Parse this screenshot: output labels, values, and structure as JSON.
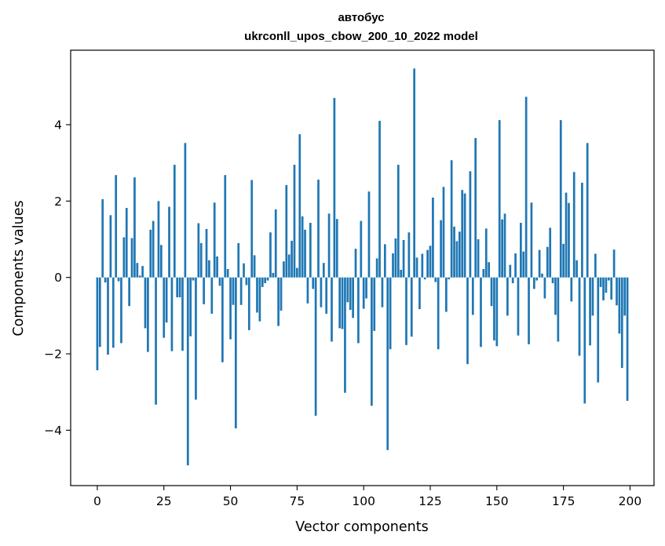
{
  "chart_data": {
    "type": "bar",
    "title": "автобус",
    "subtitle": "ukrconll_upos_cbow_200_10_2022 model",
    "xlabel": "Vector components",
    "ylabel": "Components values",
    "xlim": [
      -10,
      209
    ],
    "ylim": [
      -5.45,
      5.95
    ],
    "xticks": [
      0,
      25,
      50,
      75,
      100,
      125,
      150,
      175,
      200
    ],
    "yticks": [
      -4,
      -2,
      0,
      2,
      4
    ],
    "grid": false,
    "bar_color": "#1f77b4",
    "values": [
      -2.43,
      -1.82,
      2.05,
      -0.13,
      -2.02,
      1.63,
      -1.84,
      2.68,
      -0.1,
      -1.72,
      1.05,
      1.82,
      -0.75,
      1.03,
      2.62,
      0.38,
      0.05,
      0.3,
      -1.33,
      -1.95,
      1.25,
      1.48,
      -3.33,
      2.0,
      0.85,
      -1.58,
      -1.18,
      1.85,
      -1.93,
      2.95,
      -0.52,
      -0.52,
      -1.92,
      3.52,
      -4.92,
      -1.54,
      -0.08,
      -3.2,
      1.42,
      0.9,
      -0.7,
      1.27,
      0.45,
      -0.95,
      1.96,
      0.55,
      -0.22,
      -2.22,
      2.68,
      0.22,
      -1.62,
      -0.72,
      -3.95,
      0.9,
      -0.72,
      0.37,
      -0.2,
      -1.38,
      2.55,
      0.58,
      -0.92,
      -1.15,
      -0.25,
      -0.15,
      -0.08,
      1.18,
      0.12,
      1.78,
      -1.27,
      -0.87,
      0.42,
      2.42,
      0.6,
      0.96,
      2.95,
      0.25,
      3.75,
      1.6,
      1.25,
      -0.68,
      1.43,
      -0.3,
      -3.62,
      2.56,
      -0.78,
      0.38,
      -0.95,
      1.67,
      -1.68,
      4.7,
      1.53,
      -1.33,
      -1.35,
      -3.02,
      -0.65,
      -0.85,
      -1.06,
      0.75,
      -1.72,
      1.48,
      -0.82,
      -0.55,
      2.25,
      -3.36,
      -1.4,
      0.5,
      4.1,
      -0.78,
      0.87,
      -4.52,
      -1.88,
      0.63,
      1.02,
      2.95,
      0.2,
      0.98,
      -1.77,
      1.18,
      -1.55,
      5.47,
      0.52,
      -0.83,
      0.62,
      -0.05,
      0.72,
      0.83,
      2.09,
      -0.12,
      -1.88,
      1.5,
      2.37,
      -0.9,
      -0.05,
      3.07,
      1.33,
      0.95,
      1.2,
      2.29,
      2.2,
      -2.27,
      2.78,
      -0.98,
      3.65,
      1.0,
      -1.82,
      0.22,
      1.28,
      0.4,
      -0.75,
      -1.65,
      -1.8,
      4.12,
      1.52,
      1.67,
      -1.0,
      0.33,
      -0.15,
      0.63,
      -1.52,
      1.43,
      0.68,
      4.73,
      -1.75,
      1.96,
      -0.3,
      -0.08,
      0.72,
      0.1,
      -0.55,
      0.8,
      1.3,
      -0.15,
      -0.98,
      -1.68,
      4.12,
      0.88,
      2.22,
      1.95,
      -0.63,
      2.76,
      0.45,
      -2.05,
      2.48,
      -3.3,
      3.52,
      -1.78,
      -1.0,
      0.62,
      -2.75,
      -0.25,
      -0.6,
      -0.4,
      -0.08,
      -0.58,
      0.73,
      -0.73,
      -1.47,
      -2.37,
      -1.0,
      -3.23
    ]
  }
}
